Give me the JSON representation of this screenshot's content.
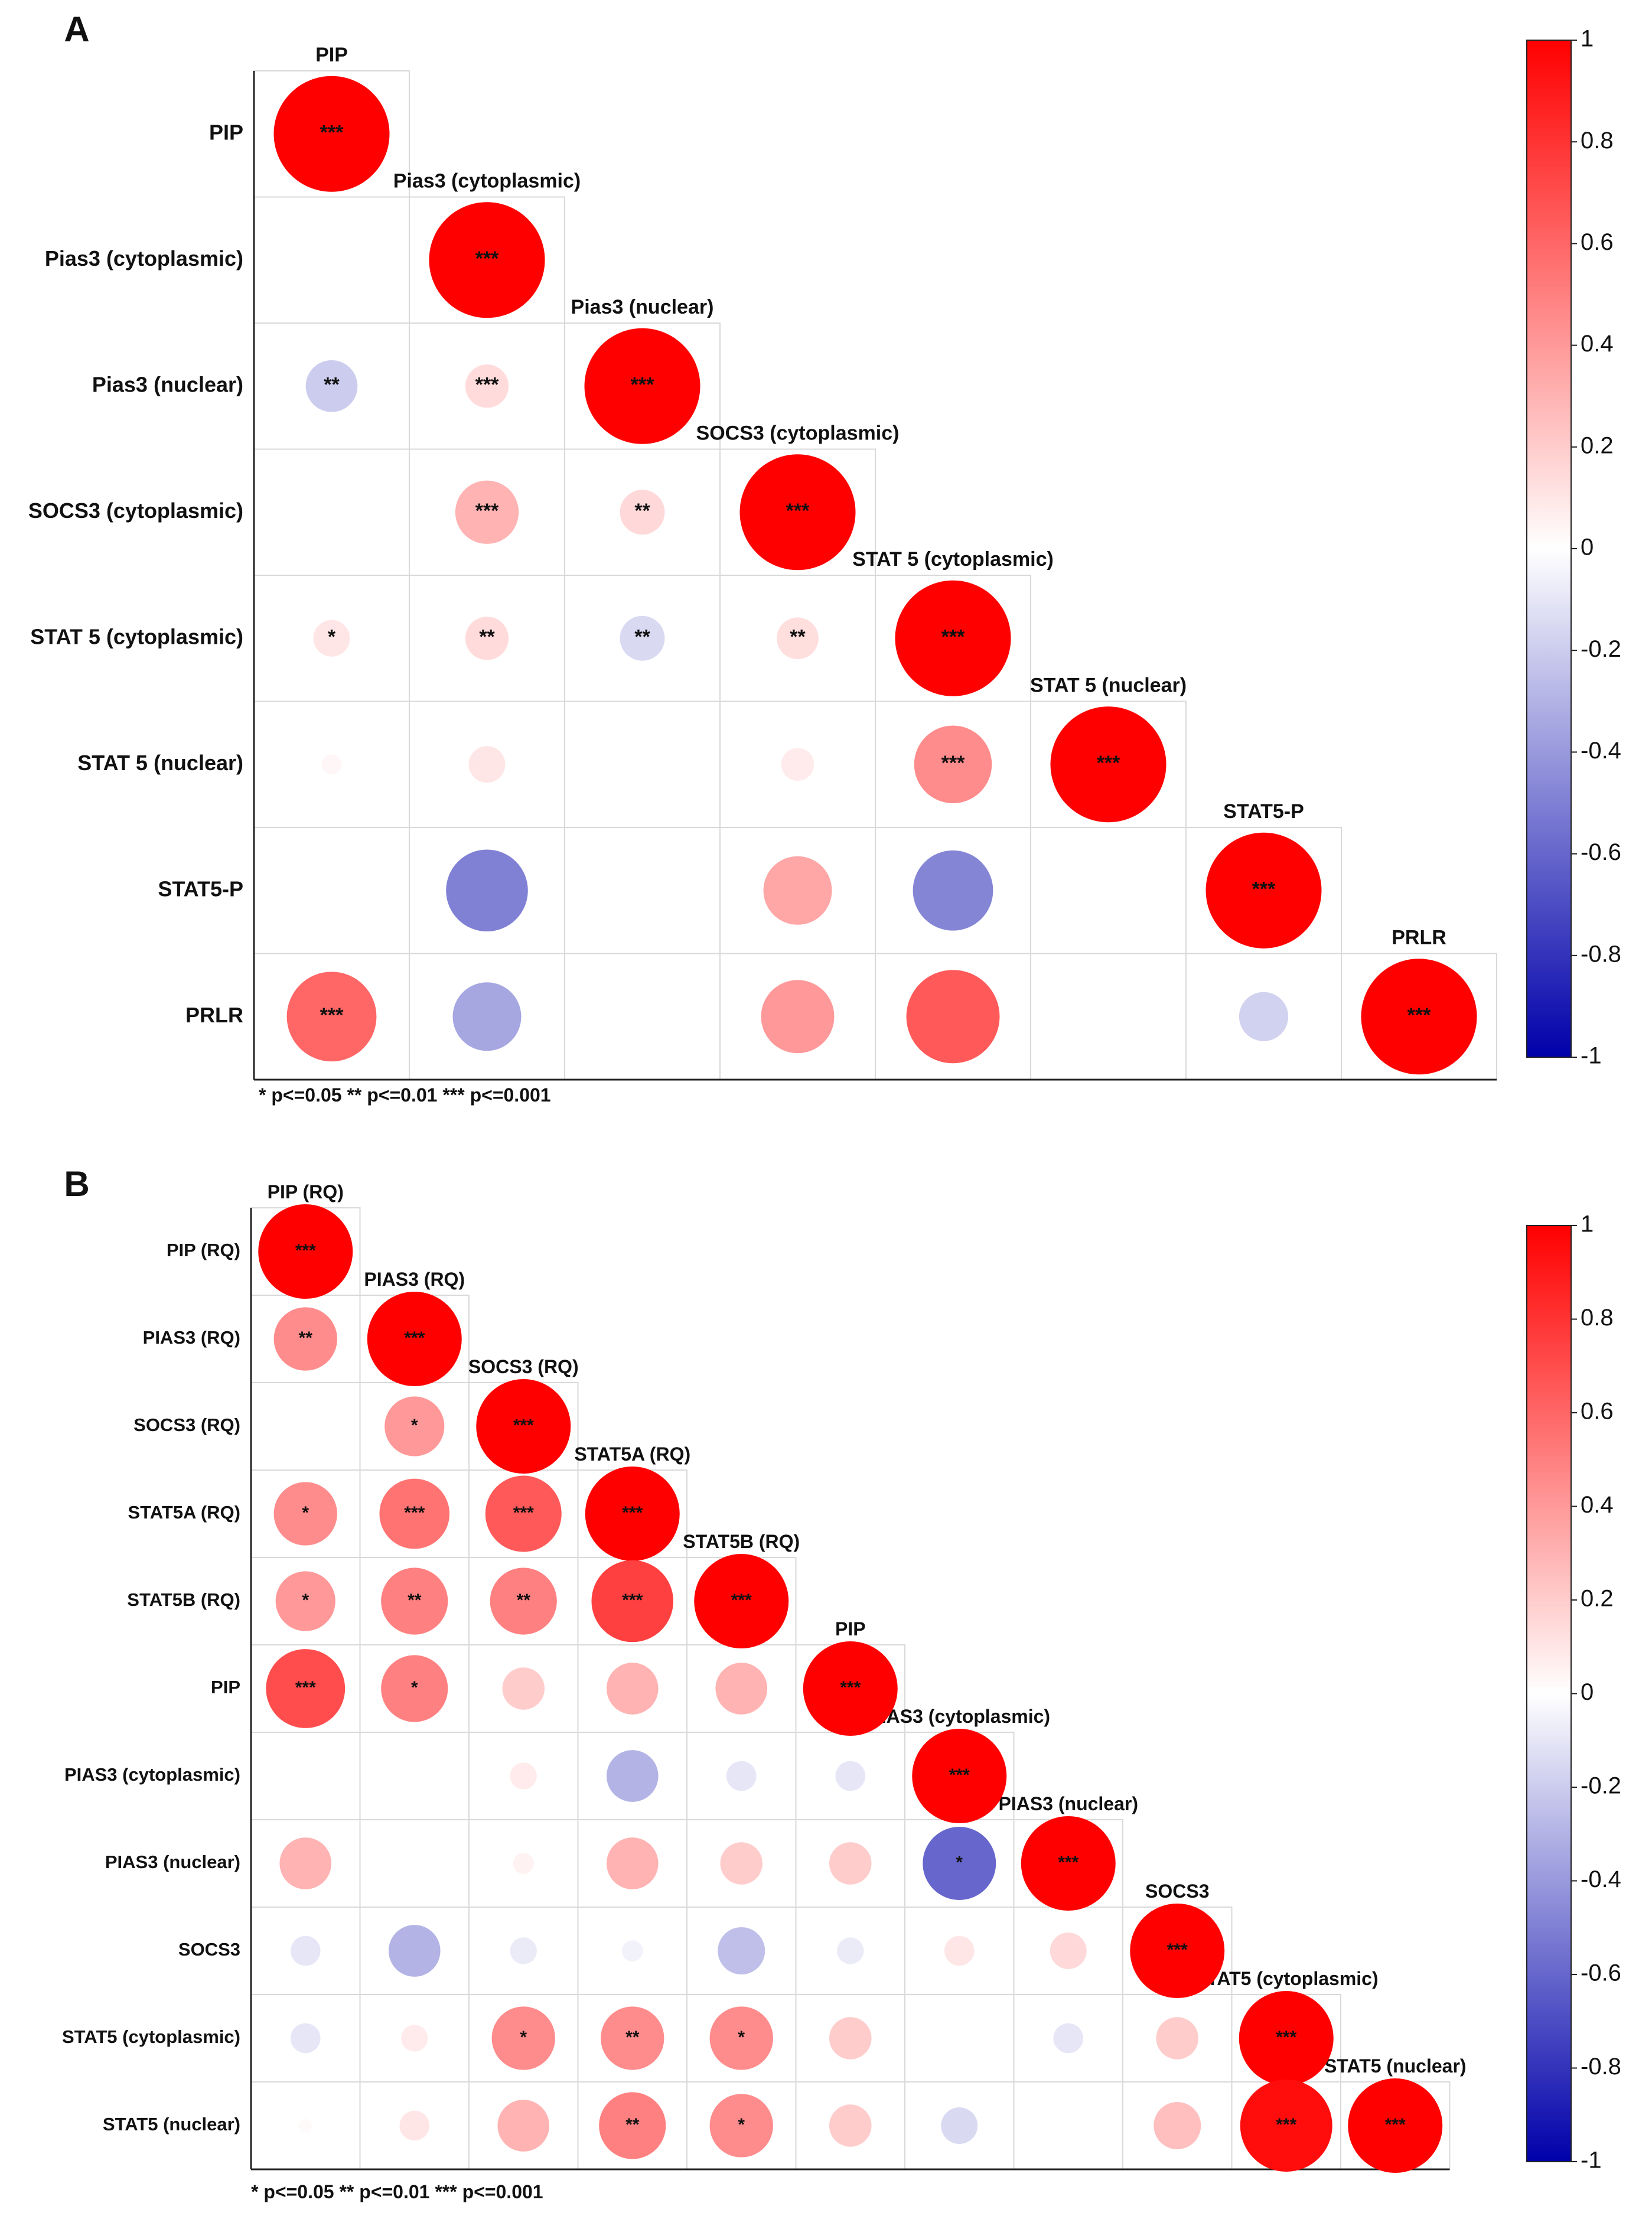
{
  "chart_data": [
    {
      "type": "heatmap",
      "panel_label": "A",
      "variant": "correlogram-lower-triangle",
      "variables": [
        "PIP",
        "Pias3 (cytoplasmic)",
        "Pias3 (nuclear)",
        "SOCS3 (cytoplasmic)",
        "STAT 5 (cytoplasmic)",
        "STAT 5 (nuclear)",
        "STAT5-P",
        "PRLR"
      ],
      "cells": [
        {
          "row": 0,
          "col": 0,
          "r": 1.0,
          "sig": "***"
        },
        {
          "row": 1,
          "col": 0,
          "r": 0.0,
          "sig": ""
        },
        {
          "row": 1,
          "col": 1,
          "r": 1.0,
          "sig": "***"
        },
        {
          "row": 2,
          "col": 0,
          "r": -0.2,
          "sig": "**"
        },
        {
          "row": 2,
          "col": 1,
          "r": 0.14,
          "sig": "***"
        },
        {
          "row": 2,
          "col": 2,
          "r": 1.0,
          "sig": "***"
        },
        {
          "row": 3,
          "col": 0,
          "r": 0.0,
          "sig": ""
        },
        {
          "row": 3,
          "col": 1,
          "r": 0.3,
          "sig": "***"
        },
        {
          "row": 3,
          "col": 2,
          "r": 0.15,
          "sig": "**"
        },
        {
          "row": 3,
          "col": 3,
          "r": 1.0,
          "sig": "***"
        },
        {
          "row": 4,
          "col": 0,
          "r": 0.1,
          "sig": "*"
        },
        {
          "row": 4,
          "col": 1,
          "r": 0.14,
          "sig": "**"
        },
        {
          "row": 4,
          "col": 2,
          "r": -0.15,
          "sig": "**"
        },
        {
          "row": 4,
          "col": 3,
          "r": 0.13,
          "sig": "**"
        },
        {
          "row": 4,
          "col": 4,
          "r": 1.0,
          "sig": "***"
        },
        {
          "row": 5,
          "col": 0,
          "r": 0.03,
          "sig": ""
        },
        {
          "row": 5,
          "col": 1,
          "r": 0.1,
          "sig": ""
        },
        {
          "row": 5,
          "col": 2,
          "r": 0.0,
          "sig": ""
        },
        {
          "row": 5,
          "col": 3,
          "r": 0.08,
          "sig": ""
        },
        {
          "row": 5,
          "col": 4,
          "r": 0.45,
          "sig": "***"
        },
        {
          "row": 5,
          "col": 5,
          "r": 1.0,
          "sig": "***"
        },
        {
          "row": 6,
          "col": 0,
          "r": 0.0,
          "sig": ""
        },
        {
          "row": 6,
          "col": 1,
          "r": -0.5,
          "sig": ""
        },
        {
          "row": 6,
          "col": 2,
          "r": 0.0,
          "sig": ""
        },
        {
          "row": 6,
          "col": 3,
          "r": 0.35,
          "sig": ""
        },
        {
          "row": 6,
          "col": 4,
          "r": -0.48,
          "sig": ""
        },
        {
          "row": 6,
          "col": 5,
          "r": 0.0,
          "sig": ""
        },
        {
          "row": 6,
          "col": 6,
          "r": 1.0,
          "sig": "***"
        },
        {
          "row": 7,
          "col": 0,
          "r": 0.6,
          "sig": "***"
        },
        {
          "row": 7,
          "col": 1,
          "r": -0.35,
          "sig": ""
        },
        {
          "row": 7,
          "col": 2,
          "r": 0.0,
          "sig": ""
        },
        {
          "row": 7,
          "col": 3,
          "r": 0.4,
          "sig": ""
        },
        {
          "row": 7,
          "col": 4,
          "r": 0.65,
          "sig": ""
        },
        {
          "row": 7,
          "col": 5,
          "r": 0.0,
          "sig": ""
        },
        {
          "row": 7,
          "col": 6,
          "r": -0.18,
          "sig": ""
        },
        {
          "row": 7,
          "col": 7,
          "r": 1.0,
          "sig": "***"
        }
      ],
      "colorbar": {
        "range": [
          -1,
          1
        ],
        "ticks": [
          "1",
          "0.8",
          "0.6",
          "0.4",
          "0.2",
          "0",
          "-0.2",
          "-0.4",
          "-0.6",
          "-0.8",
          "-1"
        ]
      },
      "significance_legend": "* p<=0.05  ** p<=0.01  *** p<=0.001"
    },
    {
      "type": "heatmap",
      "panel_label": "B",
      "variant": "correlogram-lower-triangle",
      "variables": [
        "PIP (RQ)",
        "PIAS3 (RQ)",
        "SOCS3 (RQ)",
        "STAT5A (RQ)",
        "STAT5B (RQ)",
        "PIP",
        "PIAS3 (cytoplasmic)",
        "PIAS3 (nuclear)",
        "SOCS3",
        "STAT5 (cytoplasmic)",
        "STAT5 (nuclear)"
      ],
      "cells": [
        {
          "row": 0,
          "col": 0,
          "r": 1.0,
          "sig": "***"
        },
        {
          "row": 1,
          "col": 0,
          "r": 0.45,
          "sig": "**"
        },
        {
          "row": 1,
          "col": 1,
          "r": 1.0,
          "sig": "***"
        },
        {
          "row": 2,
          "col": 0,
          "r": 0.0,
          "sig": ""
        },
        {
          "row": 2,
          "col": 1,
          "r": 0.4,
          "sig": "*"
        },
        {
          "row": 2,
          "col": 2,
          "r": 1.0,
          "sig": "***"
        },
        {
          "row": 3,
          "col": 0,
          "r": 0.45,
          "sig": "*"
        },
        {
          "row": 3,
          "col": 1,
          "r": 0.55,
          "sig": "***"
        },
        {
          "row": 3,
          "col": 2,
          "r": 0.65,
          "sig": "***"
        },
        {
          "row": 3,
          "col": 3,
          "r": 1.0,
          "sig": "***"
        },
        {
          "row": 4,
          "col": 0,
          "r": 0.4,
          "sig": "*"
        },
        {
          "row": 4,
          "col": 1,
          "r": 0.5,
          "sig": "**"
        },
        {
          "row": 4,
          "col": 2,
          "r": 0.5,
          "sig": "**"
        },
        {
          "row": 4,
          "col": 3,
          "r": 0.75,
          "sig": "***"
        },
        {
          "row": 4,
          "col": 4,
          "r": 1.0,
          "sig": "***"
        },
        {
          "row": 5,
          "col": 0,
          "r": 0.7,
          "sig": "***"
        },
        {
          "row": 5,
          "col": 1,
          "r": 0.5,
          "sig": "*"
        },
        {
          "row": 5,
          "col": 2,
          "r": 0.2,
          "sig": ""
        },
        {
          "row": 5,
          "col": 3,
          "r": 0.3,
          "sig": ""
        },
        {
          "row": 5,
          "col": 4,
          "r": 0.3,
          "sig": ""
        },
        {
          "row": 5,
          "col": 5,
          "r": 1.0,
          "sig": "***"
        },
        {
          "row": 6,
          "col": 0,
          "r": 0.0,
          "sig": ""
        },
        {
          "row": 6,
          "col": 1,
          "r": 0.0,
          "sig": ""
        },
        {
          "row": 6,
          "col": 2,
          "r": 0.08,
          "sig": ""
        },
        {
          "row": 6,
          "col": 3,
          "r": -0.3,
          "sig": ""
        },
        {
          "row": 6,
          "col": 4,
          "r": -0.1,
          "sig": ""
        },
        {
          "row": 6,
          "col": 5,
          "r": -0.1,
          "sig": ""
        },
        {
          "row": 6,
          "col": 6,
          "r": 1.0,
          "sig": "***"
        },
        {
          "row": 7,
          "col": 0,
          "r": 0.3,
          "sig": ""
        },
        {
          "row": 7,
          "col": 1,
          "r": 0.0,
          "sig": ""
        },
        {
          "row": 7,
          "col": 2,
          "r": 0.05,
          "sig": ""
        },
        {
          "row": 7,
          "col": 3,
          "r": 0.3,
          "sig": ""
        },
        {
          "row": 7,
          "col": 4,
          "r": 0.2,
          "sig": ""
        },
        {
          "row": 7,
          "col": 5,
          "r": 0.2,
          "sig": ""
        },
        {
          "row": 7,
          "col": 6,
          "r": -0.6,
          "sig": "*"
        },
        {
          "row": 7,
          "col": 7,
          "r": 1.0,
          "sig": "***"
        },
        {
          "row": 8,
          "col": 0,
          "r": -0.1,
          "sig": ""
        },
        {
          "row": 8,
          "col": 1,
          "r": -0.3,
          "sig": ""
        },
        {
          "row": 8,
          "col": 2,
          "r": -0.08,
          "sig": ""
        },
        {
          "row": 8,
          "col": 3,
          "r": -0.05,
          "sig": ""
        },
        {
          "row": 8,
          "col": 4,
          "r": -0.25,
          "sig": ""
        },
        {
          "row": 8,
          "col": 5,
          "r": -0.08,
          "sig": ""
        },
        {
          "row": 8,
          "col": 6,
          "r": 0.1,
          "sig": ""
        },
        {
          "row": 8,
          "col": 7,
          "r": 0.15,
          "sig": ""
        },
        {
          "row": 8,
          "col": 8,
          "r": 1.0,
          "sig": "***"
        },
        {
          "row": 9,
          "col": 0,
          "r": -0.1,
          "sig": ""
        },
        {
          "row": 9,
          "col": 1,
          "r": 0.08,
          "sig": ""
        },
        {
          "row": 9,
          "col": 2,
          "r": 0.45,
          "sig": "*"
        },
        {
          "row": 9,
          "col": 3,
          "r": 0.45,
          "sig": "**"
        },
        {
          "row": 9,
          "col": 4,
          "r": 0.45,
          "sig": "*"
        },
        {
          "row": 9,
          "col": 5,
          "r": 0.2,
          "sig": ""
        },
        {
          "row": 9,
          "col": 6,
          "r": 0.0,
          "sig": ""
        },
        {
          "row": 9,
          "col": 7,
          "r": -0.1,
          "sig": ""
        },
        {
          "row": 9,
          "col": 8,
          "r": 0.2,
          "sig": ""
        },
        {
          "row": 9,
          "col": 9,
          "r": 1.0,
          "sig": "***"
        },
        {
          "row": 10,
          "col": 0,
          "r": 0.02,
          "sig": ""
        },
        {
          "row": 10,
          "col": 1,
          "r": 0.1,
          "sig": ""
        },
        {
          "row": 10,
          "col": 2,
          "r": 0.3,
          "sig": ""
        },
        {
          "row": 10,
          "col": 3,
          "r": 0.5,
          "sig": "**"
        },
        {
          "row": 10,
          "col": 4,
          "r": 0.45,
          "sig": "*"
        },
        {
          "row": 10,
          "col": 5,
          "r": 0.2,
          "sig": ""
        },
        {
          "row": 10,
          "col": 6,
          "r": -0.15,
          "sig": ""
        },
        {
          "row": 10,
          "col": 7,
          "r": 0.0,
          "sig": ""
        },
        {
          "row": 10,
          "col": 8,
          "r": 0.25,
          "sig": ""
        },
        {
          "row": 10,
          "col": 9,
          "r": 0.95,
          "sig": "***"
        },
        {
          "row": 10,
          "col": 10,
          "r": 1.0,
          "sig": "***"
        }
      ],
      "colorbar": {
        "range": [
          -1,
          1
        ],
        "ticks": [
          "1",
          "0.8",
          "0.6",
          "0.4",
          "0.2",
          "0",
          "-0.2",
          "-0.4",
          "-0.6",
          "-0.8",
          "-1"
        ]
      },
      "significance_legend": "* p<=0.05  ** p<=0.01  *** p<=0.001"
    }
  ]
}
